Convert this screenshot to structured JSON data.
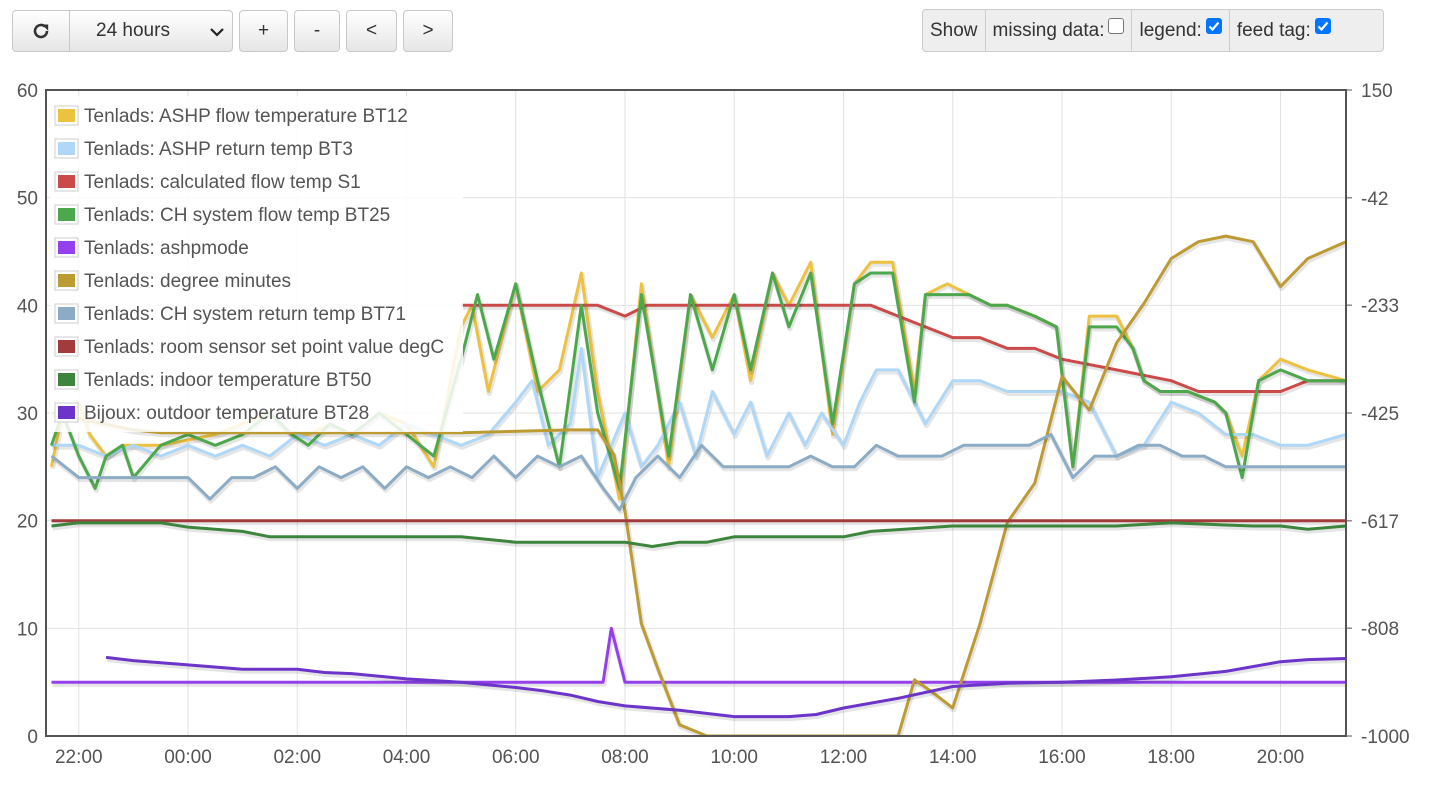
{
  "toolbar": {
    "range_value": "24 hours",
    "zoom_in_label": "+",
    "zoom_out_label": "-",
    "pan_left_label": "<",
    "pan_right_label": ">",
    "refresh_icon": "refresh-icon",
    "dropdown_icon": "chevron-down-icon"
  },
  "options": {
    "show_label": "Show",
    "missing_data_label": "missing data:",
    "missing_data_checked": false,
    "legend_label": "legend:",
    "legend_checked": true,
    "feed_tag_label": "feed tag:",
    "feed_tag_checked": true,
    "checkbox_color": "#0075ff"
  },
  "chart_data": {
    "type": "line",
    "x_unit": "hours (day 0 = 00:00)",
    "xlim": [
      21.4,
      45.2
    ],
    "x_ticks": [
      22,
      24,
      26,
      28,
      30,
      32,
      34,
      36,
      38,
      40,
      42,
      44
    ],
    "x_tick_labels": [
      "22:00",
      "00:00",
      "02:00",
      "04:00",
      "06:00",
      "08:00",
      "10:00",
      "12:00",
      "14:00",
      "16:00",
      "18:00",
      "20:00"
    ],
    "y_left": {
      "lim": [
        0,
        60
      ],
      "ticks": [
        0,
        10,
        20,
        30,
        40,
        50,
        60
      ],
      "tick_labels": [
        "0",
        "10",
        "20",
        "30",
        "40",
        "50",
        "60"
      ]
    },
    "y_right": {
      "lim": [
        -1000,
        150
      ],
      "ticks": [
        150,
        -42,
        -233,
        -425,
        -617,
        -808,
        -1000
      ],
      "tick_labels": [
        "150",
        "-42",
        "-233",
        "-425",
        "-617",
        "-808",
        "-1000"
      ]
    },
    "grid": true,
    "legend_position": "top-left",
    "series": [
      {
        "name": "Tenlads: ASHP flow temperature BT12",
        "color": "#edc240",
        "axis": "left",
        "x": [
          21.5,
          21.7,
          22.0,
          22.2,
          22.5,
          22.8,
          23.5,
          24.5,
          25.0,
          25.5,
          25.9,
          26.2,
          26.6,
          27.0,
          27.5,
          28.0,
          28.5,
          29.0,
          29.2,
          29.5,
          30.0,
          30.4,
          30.8,
          31.2,
          31.5,
          31.9,
          32.3,
          32.8,
          33.2,
          33.6,
          34.0,
          34.3,
          34.7,
          35.0,
          35.4,
          35.8,
          36.2,
          36.5,
          36.9,
          37.3,
          37.5,
          37.9,
          38.3,
          38.7,
          39.0,
          39.5,
          39.9,
          40.2,
          40.5,
          41.0,
          41.3,
          41.5,
          41.8,
          42.3,
          42.8,
          43.0,
          43.3,
          43.6,
          44.0,
          44.5,
          45.2
        ],
        "y": [
          25,
          30,
          31,
          28,
          26,
          27,
          27,
          28,
          29,
          30,
          28,
          28,
          29,
          28,
          30,
          29,
          25,
          38,
          40,
          32,
          42,
          32,
          34,
          43,
          32,
          22,
          42,
          25,
          41,
          37,
          41,
          33,
          43,
          40,
          44,
          28,
          42,
          44,
          44,
          32,
          41,
          42,
          41,
          40,
          40,
          39,
          38,
          25,
          39,
          39,
          36,
          33,
          32,
          32,
          31,
          30,
          26,
          33,
          35,
          34,
          33
        ]
      },
      {
        "name": "Tenlads: ASHP return temp BT3",
        "color": "#afd8f8",
        "axis": "left",
        "x": [
          21.5,
          22.0,
          22.5,
          23.0,
          23.5,
          24.0,
          24.5,
          25.0,
          25.5,
          26.0,
          26.5,
          27.0,
          27.5,
          28.0,
          28.5,
          29.0,
          29.5,
          30.0,
          30.3,
          30.6,
          31.0,
          31.2,
          31.5,
          32.0,
          32.3,
          32.6,
          33.0,
          33.3,
          33.6,
          34.0,
          34.3,
          34.6,
          35.0,
          35.3,
          35.6,
          36.0,
          36.3,
          36.6,
          37.0,
          37.5,
          38.0,
          38.5,
          39.0,
          39.5,
          40.0,
          40.5,
          41.0,
          41.5,
          42.0,
          42.5,
          43.0,
          43.5,
          44.0,
          44.5,
          45.2
        ],
        "y": [
          27,
          27,
          26,
          27,
          26,
          27,
          26,
          27,
          26,
          28,
          27,
          28,
          27,
          29,
          28,
          27,
          28,
          31,
          33,
          27,
          29,
          36,
          24,
          30,
          25,
          27,
          31,
          26,
          32,
          28,
          31,
          26,
          30,
          27,
          30,
          27,
          31,
          34,
          34,
          29,
          33,
          33,
          32,
          32,
          32,
          31,
          26,
          27,
          31,
          30,
          28,
          28,
          27,
          27,
          28
        ]
      },
      {
        "name": "Tenlads: calculated flow temp S1",
        "color": "#cb4b4b",
        "axis": "left",
        "x": [
          29.0,
          31.5,
          32.0,
          32.4,
          33.0,
          34.0,
          35.0,
          35.8,
          36.5,
          37.0,
          37.5,
          38.0,
          38.5,
          39.0,
          39.5,
          40.0,
          41.0,
          42.0,
          42.5,
          43.0,
          43.5,
          44.0,
          44.5,
          45.2
        ],
        "y": [
          40,
          40,
          39,
          40,
          40,
          40,
          40,
          40,
          40,
          39,
          38,
          37,
          37,
          36,
          36,
          35,
          34,
          33,
          32,
          32,
          32,
          32,
          33,
          33
        ]
      },
      {
        "name": "Tenlads: CH system flow temp BT25",
        "color": "#4da74d",
        "axis": "left",
        "x": [
          21.5,
          21.7,
          22.0,
          22.3,
          22.5,
          22.8,
          23.0,
          23.5,
          24.0,
          24.5,
          25.0,
          25.5,
          25.9,
          26.2,
          26.6,
          27.0,
          27.5,
          28.0,
          28.5,
          29.0,
          29.3,
          29.6,
          30.0,
          30.4,
          30.8,
          31.2,
          31.5,
          31.9,
          32.3,
          32.8,
          33.2,
          33.6,
          34.0,
          34.3,
          34.7,
          35.0,
          35.4,
          35.8,
          36.2,
          36.5,
          36.9,
          37.3,
          37.5,
          37.9,
          38.3,
          38.7,
          39.0,
          39.5,
          39.9,
          40.2,
          40.5,
          41.0,
          41.3,
          41.5,
          41.8,
          42.3,
          42.8,
          43.0,
          43.3,
          43.6,
          44.0,
          44.5,
          45.2
        ],
        "y": [
          27,
          30,
          26,
          23,
          26,
          27,
          24,
          27,
          28,
          27,
          28,
          30,
          28,
          27,
          29,
          28,
          30,
          28,
          26,
          35,
          41,
          35,
          42,
          33,
          25,
          40,
          30,
          23,
          41,
          26,
          41,
          34,
          41,
          34,
          43,
          38,
          43,
          29,
          42,
          43,
          43,
          31,
          41,
          41,
          41,
          40,
          40,
          39,
          38,
          25,
          38,
          38,
          36,
          33,
          32,
          32,
          31,
          30,
          24,
          33,
          34,
          33,
          33
        ]
      },
      {
        "name": "Tenlads: ashpmode",
        "color": "#9440ed",
        "axis": "left",
        "x": [
          21.5,
          31.6,
          31.75,
          32.0,
          45.2
        ],
        "y": [
          5,
          5,
          10,
          5,
          5
        ]
      },
      {
        "name": "Tenlads: degree minutes",
        "color": "#bd9b33",
        "axis": "right",
        "x": [
          21.5,
          23.0,
          23.5,
          24.5,
          25.0,
          26.0,
          26.5,
          27.0,
          29.0,
          31.0,
          31.5,
          31.8,
          32.0,
          32.3,
          32.6,
          33.0,
          33.5,
          34.0,
          34.5,
          35.0,
          35.5,
          36.0,
          36.5,
          37.0,
          37.3,
          37.6,
          38.0,
          38.5,
          39.0,
          39.5,
          40.0,
          40.5,
          41.0,
          41.5,
          42.0,
          42.5,
          43.0,
          43.5,
          44.0,
          44.5,
          45.2
        ],
        "y": [
          -425,
          -455,
          -460,
          -460,
          -460,
          -460,
          -460,
          -460,
          -460,
          -455,
          -455,
          -500,
          -600,
          -800,
          -880,
          -980,
          -1000,
          -1000,
          -1000,
          -1000,
          -1000,
          -1000,
          -1000,
          -1000,
          -900,
          -920,
          -950,
          -800,
          -620,
          -550,
          -360,
          -420,
          -300,
          -230,
          -150,
          -120,
          -110,
          -120,
          -200,
          -150,
          -120
        ]
      },
      {
        "name": "Tenlads: CH system return temp BT71",
        "color": "#8cacc6",
        "axis": "left",
        "x": [
          21.5,
          22.0,
          22.5,
          23.0,
          23.5,
          24.0,
          24.4,
          24.8,
          25.2,
          25.6,
          26.0,
          26.4,
          26.8,
          27.2,
          27.6,
          28.0,
          28.4,
          28.8,
          29.2,
          29.6,
          30.0,
          30.4,
          30.8,
          31.2,
          31.6,
          31.9,
          32.2,
          32.6,
          33.0,
          33.4,
          33.8,
          34.2,
          34.6,
          35.0,
          35.4,
          35.8,
          36.2,
          36.6,
          37.0,
          37.4,
          37.8,
          38.2,
          38.6,
          39.0,
          39.4,
          39.8,
          40.2,
          40.6,
          41.0,
          41.4,
          41.8,
          42.2,
          42.6,
          43.0,
          43.4,
          43.8,
          44.2,
          45.2
        ],
        "y": [
          26,
          24,
          24,
          24,
          24,
          24,
          22,
          24,
          24,
          25,
          23,
          25,
          24,
          25,
          23,
          25,
          24,
          25,
          24,
          26,
          24,
          26,
          25,
          26,
          23,
          21,
          24,
          26,
          24,
          27,
          25,
          25,
          25,
          25,
          26,
          25,
          25,
          27,
          26,
          26,
          26,
          27,
          27,
          27,
          27,
          28,
          24,
          26,
          26,
          27,
          27,
          26,
          26,
          25,
          25,
          25,
          25,
          25
        ]
      },
      {
        "name": "Tenlads: room sensor set point value degC",
        "color": "#a23c3c",
        "axis": "left",
        "x": [
          21.5,
          45.2
        ],
        "y": [
          20,
          20
        ]
      },
      {
        "name": "Tenlads: indoor temperature BT50",
        "color": "#3d853d",
        "axis": "left",
        "x": [
          21.5,
          22.0,
          23.5,
          24.0,
          25.0,
          25.5,
          29.0,
          30.0,
          31.5,
          32.0,
          32.5,
          33.0,
          33.5,
          34.0,
          36.0,
          36.5,
          38.0,
          38.5,
          40.0,
          41.0,
          42.0,
          43.0,
          43.5,
          44.0,
          44.5,
          45.2
        ],
        "y": [
          19.5,
          19.8,
          19.8,
          19.4,
          19.0,
          18.5,
          18.5,
          18.0,
          18.0,
          18.0,
          17.6,
          18.0,
          18.0,
          18.5,
          18.5,
          19.0,
          19.5,
          19.5,
          19.5,
          19.5,
          19.8,
          19.6,
          19.5,
          19.5,
          19.2,
          19.5
        ]
      },
      {
        "name": "Bijoux: outdoor temperature BT28",
        "color": "#6c34c9",
        "axis": "left",
        "x": [
          22.5,
          23.0,
          24.0,
          25.0,
          26.0,
          26.5,
          27.0,
          28.0,
          29.0,
          30.0,
          30.5,
          31.0,
          31.5,
          32.0,
          33.0,
          34.0,
          35.0,
          35.5,
          36.0,
          37.0,
          38.0,
          39.0,
          40.0,
          41.0,
          42.0,
          43.0,
          44.0,
          44.5,
          45.2
        ],
        "y": [
          7.3,
          7,
          6.6,
          6.2,
          6.2,
          5.9,
          5.8,
          5.3,
          5.0,
          4.5,
          4.2,
          3.8,
          3.2,
          2.8,
          2.4,
          1.8,
          1.8,
          2.0,
          2.6,
          3.5,
          4.6,
          4.9,
          5.0,
          5.2,
          5.5,
          6.0,
          6.9,
          7.1,
          7.2
        ]
      }
    ]
  }
}
